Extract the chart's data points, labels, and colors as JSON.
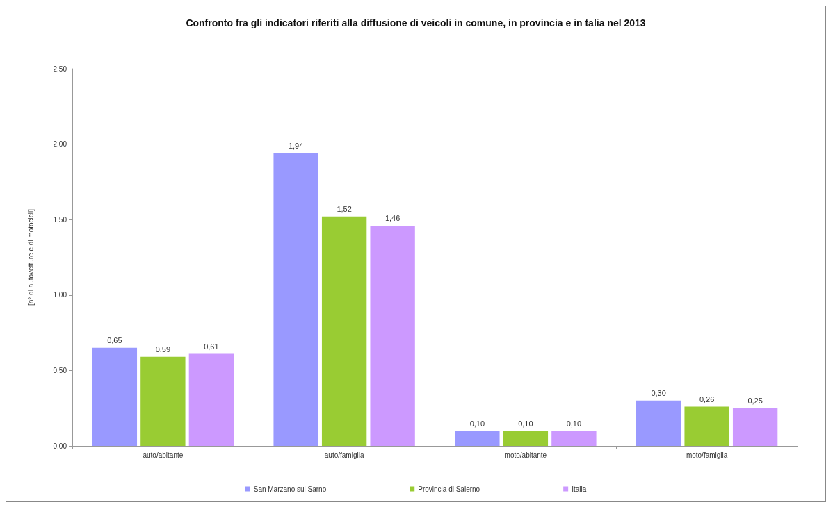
{
  "chart_data": {
    "type": "bar",
    "title": "Confronto fra gli indicatori riferiti alla diffusione di veicoli in comune, in provincia e in talia nel 2013",
    "ylabel": "[n° di autovetture e di motocicli]",
    "categories": [
      "auto/abitante",
      "auto/famiglia",
      "moto/abitante",
      "moto/famiglia"
    ],
    "series": [
      {
        "name": "San Marzano sul Sarno",
        "color": "#9999ff",
        "values": [
          0.65,
          1.94,
          0.1,
          0.3
        ],
        "value_labels": [
          "0,65",
          "1,94",
          "0,10",
          "0,30"
        ]
      },
      {
        "name": "Provincia di Salerno",
        "color": "#99cc33",
        "values": [
          0.59,
          1.52,
          0.1,
          0.26
        ],
        "value_labels": [
          "0,59",
          "1,52",
          "0,10",
          "0,26"
        ]
      },
      {
        "name": "Italia",
        "color": "#cc99ff",
        "values": [
          0.61,
          1.46,
          0.1,
          0.25
        ],
        "value_labels": [
          "0,61",
          "1,46",
          "0,10",
          "0,25"
        ]
      }
    ],
    "ylim": [
      0,
      2.5
    ],
    "yticks": [
      {
        "value": 0,
        "label": "0,00"
      },
      {
        "value": 0.5,
        "label": "0,50"
      },
      {
        "value": 1,
        "label": "1,00"
      },
      {
        "value": 1.5,
        "label": "1,50"
      },
      {
        "value": 2,
        "label": "2,00"
      },
      {
        "value": 2.5,
        "label": "2,50"
      }
    ],
    "grid": false,
    "legend": "bottom"
  }
}
